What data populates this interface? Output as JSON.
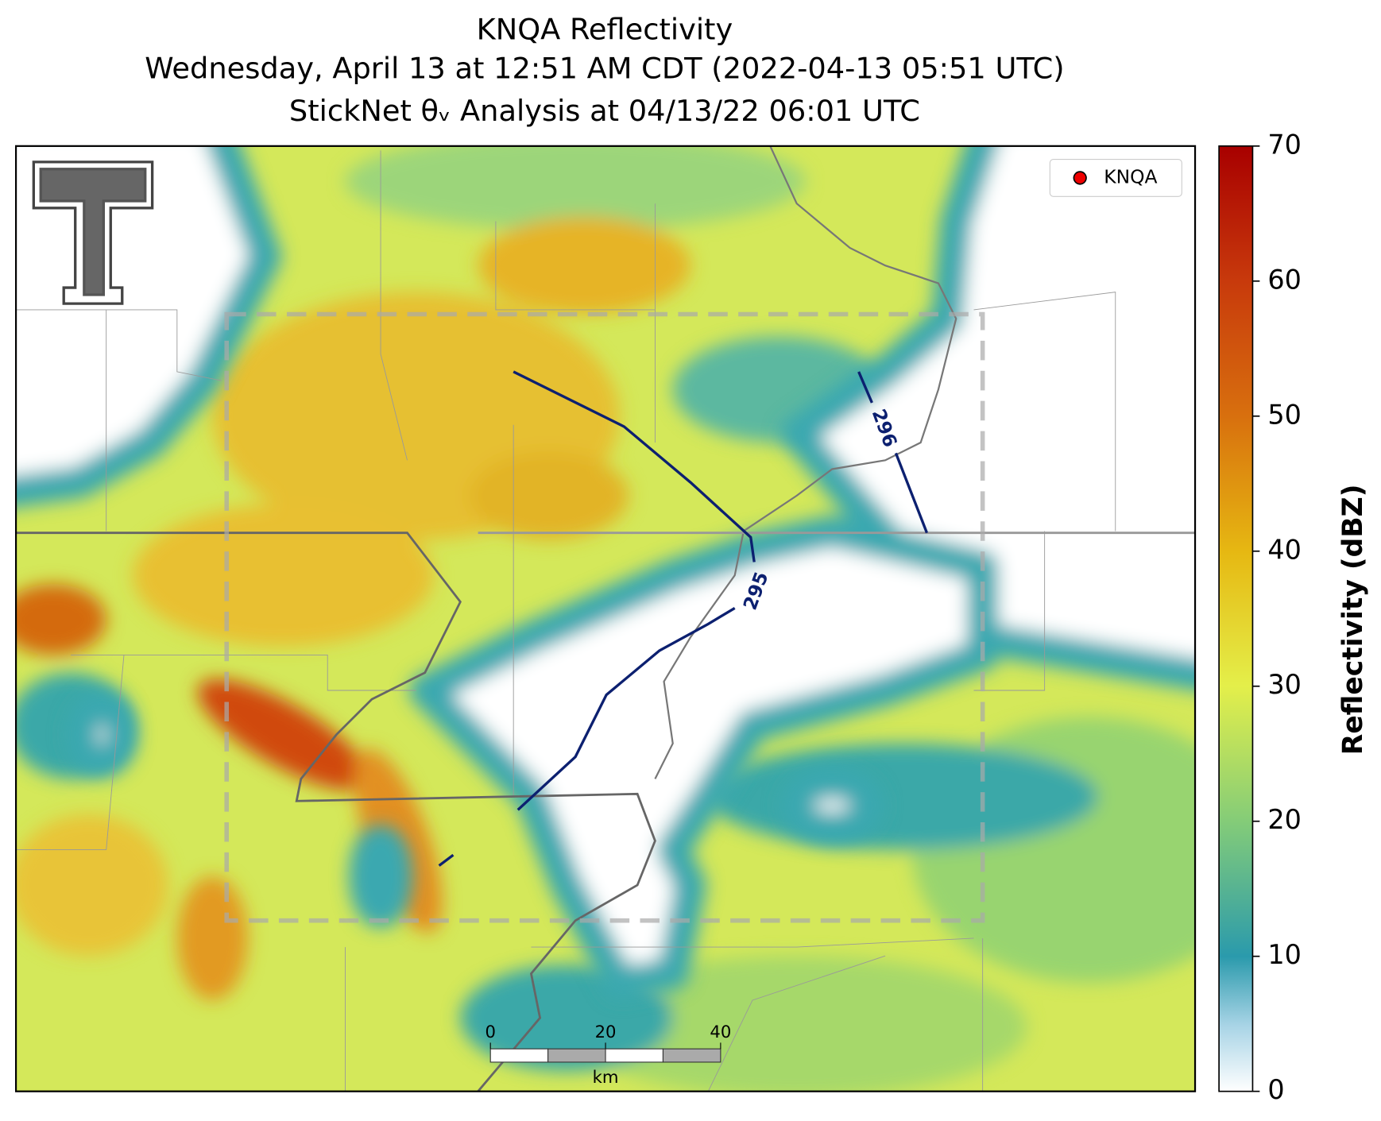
{
  "title": [
    "KNQA Reflectivity",
    "Wednesday, April 13 at 12:51 AM CDT (2022-04-13 05:51 UTC)",
    "StickNet θᵥ Analysis at 04/13/22 06:01 UTC"
  ],
  "legend": {
    "label": "KNQA"
  },
  "contours": [
    {
      "label": 295
    },
    {
      "label": 296
    }
  ],
  "colorbar": {
    "label": "Reflectivity (dBZ)",
    "lim": [
      0,
      70
    ],
    "ticks": [
      0,
      10,
      20,
      30,
      40,
      50,
      60,
      70
    ]
  },
  "scale_bar": {
    "lim": [
      0,
      40
    ],
    "ticks": [
      0,
      20,
      40
    ],
    "unit": "km"
  }
}
